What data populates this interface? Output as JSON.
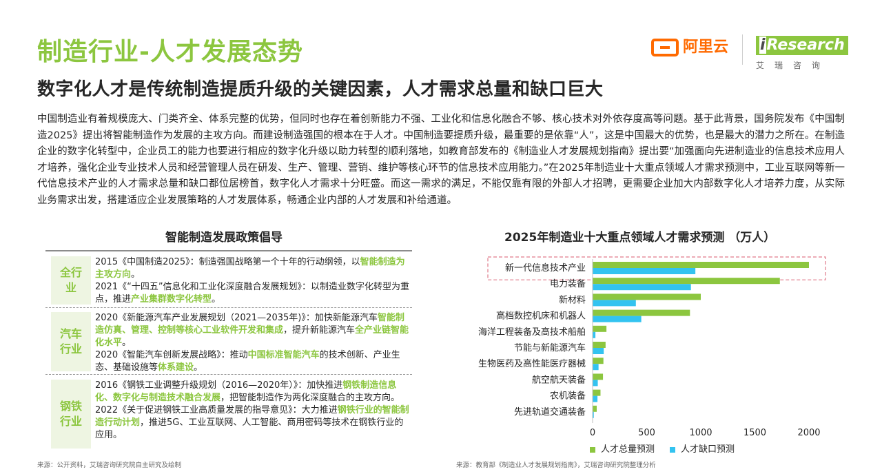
{
  "header": {
    "title": "制造行业-人才发展态势",
    "subtitle": "数字化人才是传统制造提质升级的关键因素，人才需求总量和缺口巨大"
  },
  "logos": {
    "aliyun": "阿里云",
    "iresearch_i": "i",
    "iresearch": "Research",
    "iresearch_cn": "艾瑞咨询",
    "aliyun_color": "#ff6a00",
    "accent_color": "#8cc63f"
  },
  "intro": "中国制造业有着规模庞大、门类齐全、体系完整的优势，但同时也存在着创新能力不强、工业化和信息化融合不够、核心技术对外依存度高等问题。基于此背景，国务院发布《中国制造2025》提出将智能制造作为发展的主攻方向。而建设制造强国的根本在于人才。中国制造要提质升级，最重要的是依靠“人”，这是中国最大的优势，也是最大的潜力之所在。在制造企业的数字化转型中，企业员工的能力也要进行相应的数字化升级以助力转型的顺利落地，如教育部发布的《制造业人才发展规划指南》提出要“加强面向先进制造业的信息技术应用人才培养，强化企业专业技术人员和经营管理人员在研发、生产、管理、营销、维护等核心环节的信息技术应用能力。”在2025年制造业十大重点领域人才需求预测中，工业互联网等新一代信息技术产业的人才需求总量和缺口都位居榜首，数字化人才需求十分旺盛。而这一需求的满足，不能仅靠有限的外部人才招聘，更需要企业加大内部数字化人才培养力度，从实际业务需求出发，搭建适应企业发展策略的人才发展体系，畅通企业内部的人才发展和补给通道。",
  "policy": {
    "heading": "智能制造发展政策倡导",
    "groups": [
      {
        "label_1": "全行",
        "label_2": "业",
        "items": [
          {
            "t1": "2015《中国制造2025》：制造强国战略第一个十年的行动纲领，以",
            "h1": "智能制造为主攻方向",
            "t2": "。",
            "h2": "",
            "t3": ""
          },
          {
            "t1": "2021《“十四五”信息化和工业化深度融合发展规划》：以制造业数字化转型为重点，推进",
            "h1": "产业集群数字化转型",
            "t2": "。",
            "h2": "",
            "t3": ""
          }
        ]
      },
      {
        "label_1": "汽车",
        "label_2": "行业",
        "items": [
          {
            "t1": "2020《新能源汽车产业发展规划（2021—2035年)》：加快新能源汽车",
            "h1": "智能制造仿真、管理、控制等核心工业软件开发和集成",
            "t2": "，提升新能源汽车",
            "h2": "全产业链智能化水平",
            "t3": "。"
          },
          {
            "t1": "2020《智能汽车创新发展战略》：推动",
            "h1": "中国标准智能汽车",
            "t2": "的技术创新、产业生态、基础设施等",
            "h2": "体系建设",
            "t3": "。"
          }
        ]
      },
      {
        "label_1": "钢铁",
        "label_2": "行业",
        "items": [
          {
            "t1": "2016《钢铁工业调整升级规划（2016—2020年）》：加快推进",
            "h1": "钢铁制造信息化、数字化与制造技术融合发展",
            "t2": "，把智能制造作为两化深度融合的主攻方向。",
            "h2": "",
            "t3": ""
          },
          {
            "t1": "2022《关于促进钢铁工业高质量发展的指导意见》：大力推进",
            "h1": "钢铁行业的智能制造行动计划",
            "t2": "，推进5G、工业互联网、人工智能、商用密码等技术在钢铁行业的应用。",
            "h2": "",
            "t3": ""
          }
        ]
      }
    ],
    "source": "来源：公开资料，艾瑞咨询研究院自主研究及绘制"
  },
  "chart_data": {
    "type": "bar",
    "orientation": "horizontal",
    "title": "2025年制造业十大重点领域人才需求预测 （万人）",
    "categories": [
      "新一代信息技术产业",
      "电力装备",
      "新材料",
      "高档数控机床和机器人",
      "海洋工程装备及高技术船舶",
      "节能与新能源汽车",
      "生物医药及高性能医疗器械",
      "航空航天装备",
      "农机装备",
      "先进轨道交通装备"
    ],
    "series": [
      {
        "name": "人才总量预测",
        "color": "#8cc63f",
        "values": [
          2000,
          1731,
          1000,
          900,
          128,
          120,
          100,
          96,
          73,
          38
        ]
      },
      {
        "name": "人才缺口预测",
        "color": "#33c3f0",
        "values": [
          950,
          909,
          400,
          450,
          26,
          103,
          55,
          48,
          45,
          11
        ]
      }
    ],
    "xlim": [
      0,
      2000
    ],
    "xticks": [
      "0",
      "500",
      "1000",
      "1500",
      "2000"
    ],
    "highlight_category": "新一代信息技术产业",
    "highlight_color": "#e07a8a",
    "legend": "bottom",
    "source": "来源：教育部《制造业人才发展规划指南》，艾瑞咨询研究院整理分析"
  }
}
